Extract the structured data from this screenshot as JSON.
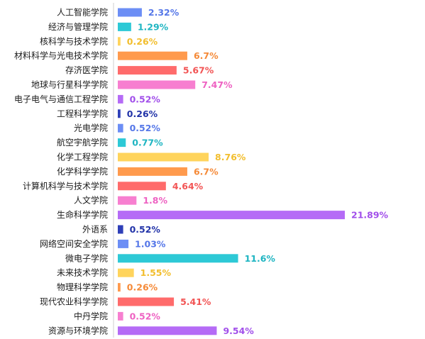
{
  "chart_data": {
    "type": "bar",
    "orientation": "horizontal",
    "value_suffix": "%",
    "xlim": [
      0,
      21.89
    ],
    "grid": false,
    "categories": [
      "人工智能学院",
      "经济与管理学院",
      "核科学与技术学院",
      "材料科学与光电技术学院",
      "存济医学院",
      "地球与行星科学学院",
      "电子电气与通信工程学院",
      "工程科学学院",
      "光电学院",
      "航空宇航学院",
      "化学工程学院",
      "化学科学学院",
      "计算机科学与技术学院",
      "人文学院",
      "生命科学学院",
      "外语系",
      "网络空间安全学院",
      "微电子学院",
      "未来技术学院",
      "物理科学学院",
      "现代农业科学学院",
      "中丹学院",
      "资源与环境学院"
    ],
    "values": [
      2.32,
      1.29,
      0.26,
      6.7,
      5.67,
      7.47,
      0.52,
      0.26,
      0.52,
      0.77,
      8.76,
      6.7,
      4.64,
      1.8,
      21.89,
      0.52,
      1.03,
      11.6,
      1.55,
      0.26,
      5.41,
      0.52,
      9.54
    ],
    "value_labels": [
      "2.32%",
      "1.29%",
      "0.26%",
      "6.7%",
      "5.67%",
      "7.47%",
      "0.52%",
      "0.26%",
      "0.52%",
      "0.77%",
      "8.76%",
      "6.7%",
      "4.64%",
      "1.8%",
      "21.89%",
      "0.52%",
      "1.03%",
      "11.6%",
      "1.55%",
      "0.26%",
      "5.41%",
      "0.52%",
      "9.54%"
    ],
    "colors": [
      "#6C8EF5",
      "#2DC9D6",
      "#FFD45C",
      "#FF9A4D",
      "#FF6B6B",
      "#F77FD0",
      "#B56BF6",
      "#2E3FB8",
      "#6C8EF5",
      "#2DC9D6",
      "#FFD45C",
      "#FF9A4D",
      "#FF6B6B",
      "#F77FD0",
      "#B56BF6",
      "#2E3FB8",
      "#6C8EF5",
      "#2DC9D6",
      "#FFD45C",
      "#FF9A4D",
      "#FF6B6B",
      "#F77FD0",
      "#B56BF6"
    ],
    "label_colors": [
      "#5577E8",
      "#1FB5C2",
      "#F2BE2E",
      "#F58A38",
      "#F25555",
      "#EE62C2",
      "#A14FEA",
      "#2233A8",
      "#5577E8",
      "#1FB5C2",
      "#F2BE2E",
      "#F58A38",
      "#F25555",
      "#EE62C2",
      "#A14FEA",
      "#2233A8",
      "#5577E8",
      "#1FB5C2",
      "#F2BE2E",
      "#F58A38",
      "#F25555",
      "#EE62C2",
      "#A14FEA"
    ]
  }
}
